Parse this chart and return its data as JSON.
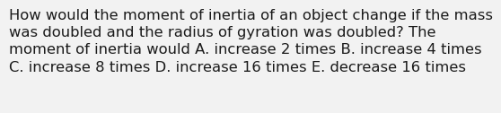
{
  "text": "How would the moment of inertia of an object change if the mass\nwas doubled and the radius of gyration was doubled? The\nmoment of inertia would A. increase 2 times B. increase 4 times\nC. increase 8 times D. increase 16 times E. decrease 16 times",
  "background_color": "#f2f2f2",
  "text_color": "#1a1a1a",
  "font_size": 11.8,
  "font_family": "DejaVu Sans",
  "figwidth": 5.58,
  "figheight": 1.26,
  "dpi": 100
}
